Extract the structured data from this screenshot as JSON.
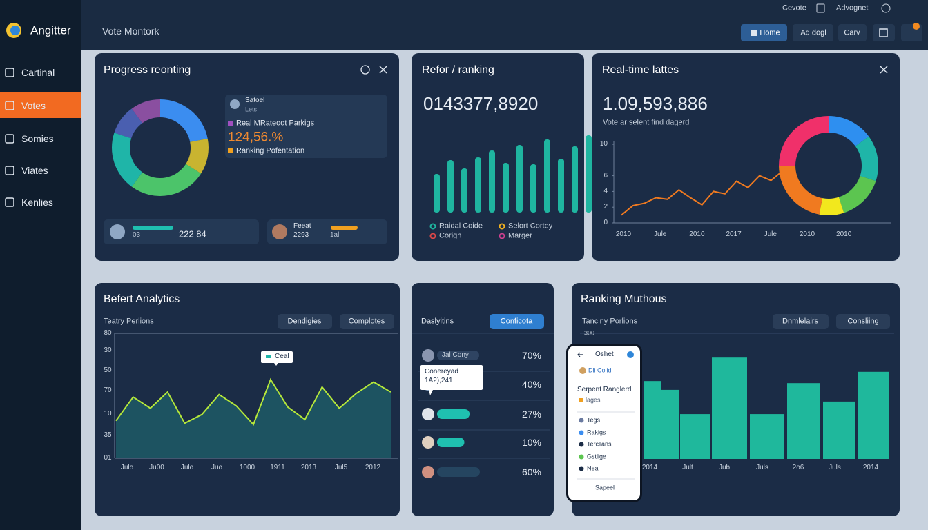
{
  "sidebar": {
    "brand": "Angitter",
    "items": [
      "Cartinal",
      "Votes",
      "Somies",
      "Viates",
      "Kenlies"
    ]
  },
  "header": {
    "title": "Vote Montork",
    "links": [
      "Cevote",
      "Advognet"
    ],
    "buttons": [
      "Home",
      "Ad dogl",
      "Carv"
    ]
  },
  "progress": {
    "title": "Progress reonting",
    "donut": {
      "values": [
        22,
        12,
        26,
        20,
        10,
        10
      ],
      "colors": [
        "#3b8df0",
        "#c9b430",
        "#4cc46a",
        "#1fb5a8",
        "#4a5fb0",
        "#8a4fa0"
      ]
    },
    "card": {
      "name": "Satoel",
      "sub": "Lets",
      "label": "Real MRateoot Parkigs",
      "value": "124,56.%",
      "note": "Ranking Pofentation"
    },
    "stats": [
      {
        "label": "03",
        "value": "222 84"
      },
      {
        "name": "Feeat",
        "value": "2293",
        "label": "1al"
      }
    ]
  },
  "ranking": {
    "title": "Refor / ranking",
    "value": "0143377,8920",
    "bars": {
      "values": [
        56,
        76,
        64,
        80,
        90,
        72,
        98,
        70,
        106,
        78,
        96,
        112
      ],
      "color": "#1fb5a0"
    },
    "legend": [
      {
        "name": "Raidal Coide",
        "color": "#1fb5a0"
      },
      {
        "name": "Selort Cortey",
        "color": "#f0b020"
      },
      {
        "name": "Corigh",
        "color": "#e04848"
      },
      {
        "name": "Marger",
        "color": "#d04090"
      }
    ]
  },
  "realtime": {
    "title": "Real-time lattes",
    "value": "1.09,593,886",
    "subtitle": "Vote ar selent find dagerd",
    "line": {
      "x_labels": [
        "2010",
        "Jule",
        "2010",
        "2017",
        "Jule",
        "2010",
        "2010"
      ],
      "ylim": [
        0,
        10
      ],
      "yticks": [
        0,
        2,
        4,
        6,
        10
      ],
      "values": [
        1,
        2.2,
        2.5,
        3.2,
        3,
        4.2,
        3.2,
        2.3,
        4,
        3.7,
        5.3,
        4.5,
        6,
        5.4,
        6.6,
        7
      ],
      "color": "#f07a20"
    },
    "donut": {
      "values": [
        15,
        15,
        15,
        8,
        22,
        25
      ],
      "colors": [
        "#2e8ff0",
        "#1fb5a8",
        "#5cc550",
        "#f2e81d",
        "#f07a20",
        "#f0306a"
      ]
    }
  },
  "analytics": {
    "title": "Befert Analytics",
    "subtitle": "Teatry Perlions",
    "buttons": [
      "Dendigies",
      "Complotes"
    ],
    "y_labels": [
      "80",
      "30",
      "50",
      "70",
      "10",
      "35",
      "01"
    ],
    "x_labels": [
      "Julo",
      "Ju00",
      "Julo",
      "Juo",
      "1000",
      "1911",
      "2013",
      "Jul5",
      "2012"
    ],
    "values": [
      30,
      49,
      40,
      53,
      28,
      35,
      51,
      42,
      27,
      63,
      41,
      31,
      57,
      40,
      52,
      61,
      53
    ],
    "color": "#b6e83a",
    "tooltip": "Ceal"
  },
  "list": {
    "tabs": [
      "Daslyitins",
      "Conficota"
    ],
    "pill": "Jal Cony",
    "tooltip": {
      "title": "Conereyad",
      "value": "1A2),241"
    },
    "values": [
      70,
      40,
      27,
      10,
      60
    ],
    "value_labels": [
      "70%",
      "40%",
      "27%",
      "10%",
      "60%"
    ]
  },
  "muthous": {
    "title": "Ranking Muthous",
    "subtitle": "Tanciny Porlions",
    "buttons": [
      "Dnmlelairs",
      "Consliing"
    ],
    "ylim": [
      0,
      300
    ],
    "yticks": [
      300
    ],
    "values": [
      186,
      165,
      107,
      242,
      107,
      181,
      137,
      208
    ],
    "color": "#1fb89c",
    "x_labels": [
      "2014",
      "Jult",
      "Jub",
      "Juls",
      "2o6",
      "Juls",
      "2014"
    ]
  },
  "phone": {
    "title": "Oshet",
    "user": "Dli Coiid",
    "heading": "Serpent Ranglerd",
    "sub": "lages",
    "items": [
      "Tegs",
      "Rakigs",
      "Tercllans",
      "Gstlige",
      "Nea"
    ],
    "button": "Sapeel"
  }
}
